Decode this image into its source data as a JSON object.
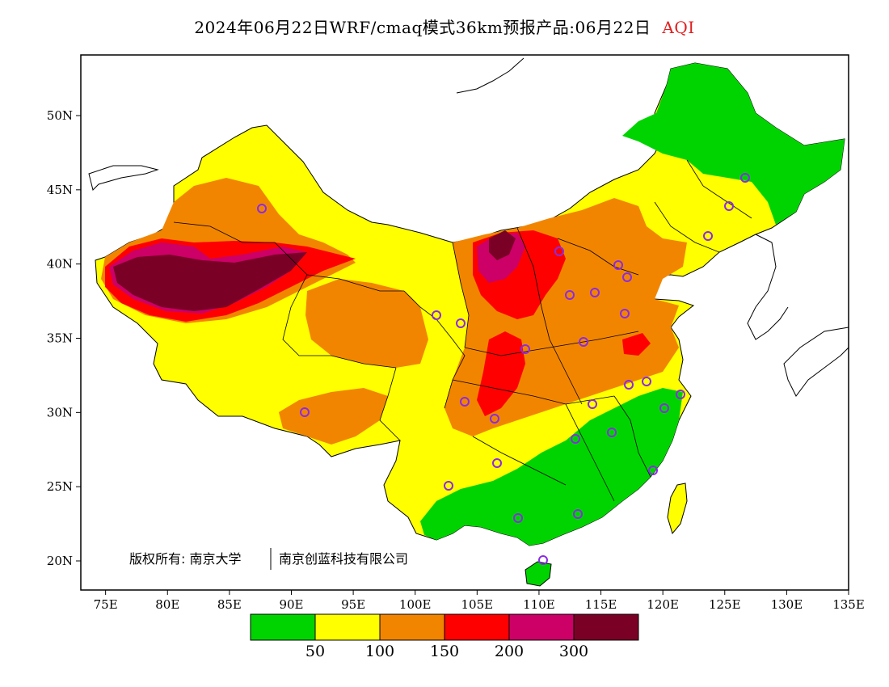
{
  "title": "2024年06月22日WRF/cmaq模式36km预报产品:06月22日",
  "variable": "AQI",
  "copyright_left": "版权所有: 南京大学",
  "copyright_right": "南京创蓝科技有限公司",
  "lat_ticks": [
    "50N",
    "45N",
    "40N",
    "35N",
    "30N",
    "25N",
    "20N"
  ],
  "lon_ticks": [
    "75E",
    "80E",
    "85E",
    "90E",
    "95E",
    "100E",
    "105E",
    "110E",
    "115E",
    "120E",
    "125E",
    "130E",
    "135E"
  ],
  "legend": {
    "colors": [
      "#00d400",
      "#ffff00",
      "#f28500",
      "#ff0000",
      "#cc0066",
      "#7a0026"
    ],
    "labels": [
      "50",
      "100",
      "150",
      "200",
      "300"
    ]
  },
  "colors": {
    "land_background": "#ffff00",
    "border": "#000000",
    "station_marker": "#8a2be2"
  },
  "map_extent": {
    "lon_min": 73,
    "lon_max": 135,
    "lat_min": 18,
    "lat_max": 54
  }
}
